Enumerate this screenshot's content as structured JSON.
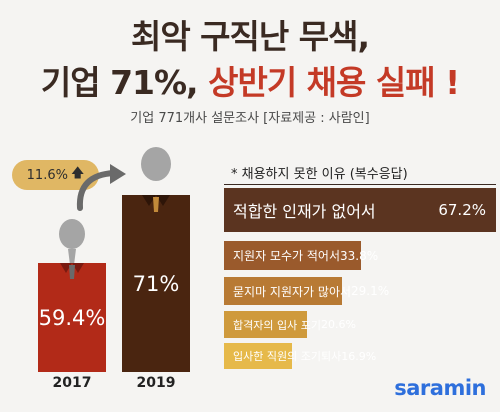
{
  "title_line1": "최악 구직난 무색,",
  "title_line2_prefix": "기업 71%, ",
  "title_line2_highlight": "상반기 채용 실패 !",
  "subtitle": "기업 771개사 설문조사 [자료제공 : 사람인]",
  "growth_badge": "11.6%",
  "growth_icon": "arrow-up-icon",
  "reasons_title": "* 채용하지 못한 이유 (복수응답)",
  "logo": "saramin",
  "colors": {
    "bar_2017": "#b22a18",
    "bar_2019": "#4a2510",
    "badge": "#e0b764",
    "logo": "#2e6fdc"
  },
  "chart_data": [
    {
      "type": "bar",
      "categories": [
        "2017",
        "2019"
      ],
      "values": [
        59.4,
        71
      ],
      "value_labels": [
        "59.4%",
        "71%"
      ]
    },
    {
      "type": "bar",
      "orientation": "horizontal",
      "title": "* 채용하지 못한 이유 (복수응답)",
      "categories": [
        "적합한 인재가 없어서",
        "지원자 모수가 적어서",
        "묻지마 지원자가 많아서",
        "합격자의 입사 포기",
        "입사한 직원의 조기퇴사"
      ],
      "values": [
        67.2,
        33.8,
        29.1,
        20.6,
        16.9
      ],
      "value_labels": [
        "67.2%",
        "33.8%",
        "29.1%",
        "20.6%",
        "16.9%"
      ],
      "colors": [
        "#5b3420",
        "#9a5a2c",
        "#b87a34",
        "#cf9a3c",
        "#e6b94a"
      ]
    }
  ]
}
